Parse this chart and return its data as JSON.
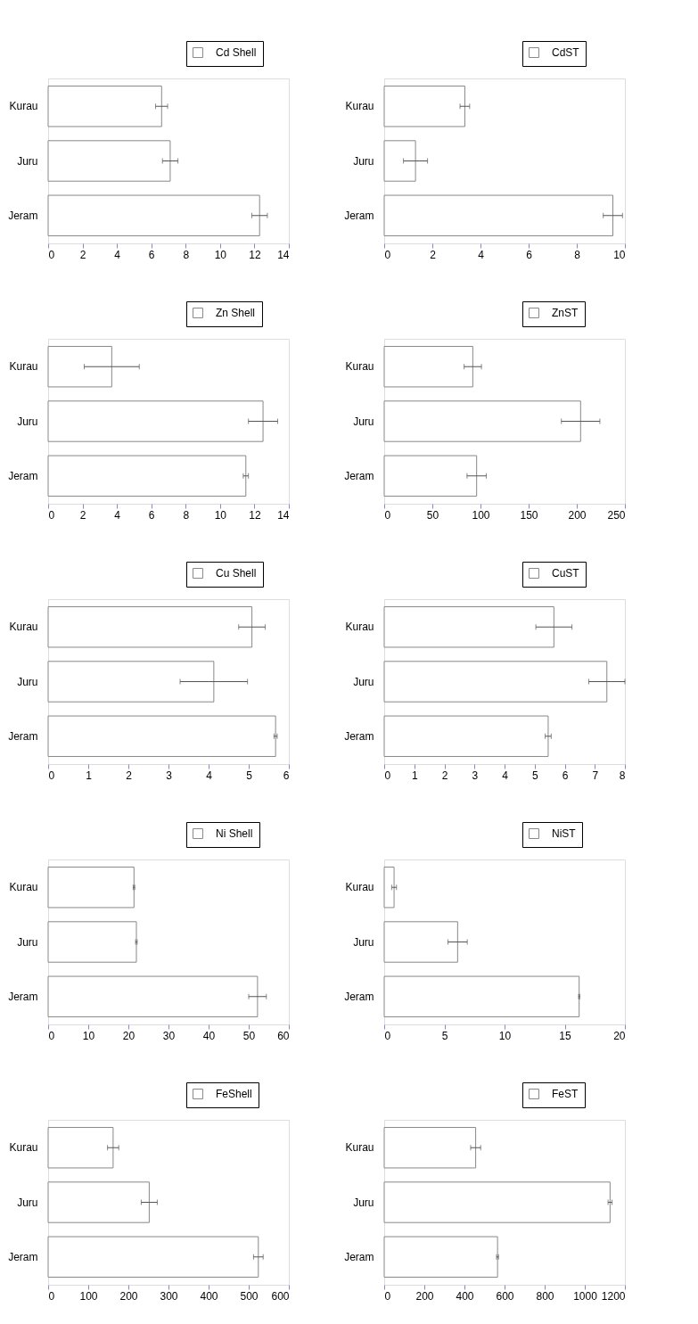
{
  "chart_data": [
    {
      "type": "bar",
      "orientation": "horizontal",
      "categories": [
        "Kurau",
        "Juru",
        "Jeram"
      ],
      "series": [
        {
          "name": "Cd Shell",
          "color": "#ffffff",
          "values": [
            6.6,
            7.1,
            12.3
          ],
          "errors": [
            0.35,
            0.45,
            0.45
          ]
        }
      ],
      "xlim": [
        0,
        14
      ],
      "xticks": [
        0,
        2,
        4,
        6,
        8,
        10,
        12,
        14
      ],
      "grid": false,
      "legend": "top right"
    },
    {
      "type": "bar",
      "orientation": "horizontal",
      "categories": [
        "Kurau",
        "Juru",
        "Jeram"
      ],
      "series": [
        {
          "name": "CdST",
          "color": "#ffffff",
          "values": [
            3.35,
            1.3,
            9.5
          ],
          "errors": [
            0.2,
            0.5,
            0.4
          ]
        }
      ],
      "xlim": [
        0,
        10
      ],
      "xticks": [
        0,
        2,
        4,
        6,
        8,
        10
      ],
      "grid": false,
      "legend": "top right"
    },
    {
      "type": "bar",
      "orientation": "horizontal",
      "categories": [
        "Kurau",
        "Juru",
        "Jeram"
      ],
      "series": [
        {
          "name": "Zn Shell",
          "color": "#ffffff",
          "values": [
            3.7,
            12.5,
            11.5
          ],
          "errors": [
            1.6,
            0.85,
            0.15
          ]
        }
      ],
      "xlim": [
        0,
        14
      ],
      "xticks": [
        0,
        2,
        4,
        6,
        8,
        10,
        12,
        14
      ],
      "grid": false,
      "legend": "top right"
    },
    {
      "type": "bar",
      "orientation": "horizontal",
      "categories": [
        "Kurau",
        "Juru",
        "Jeram"
      ],
      "series": [
        {
          "name": "ZnST",
          "color": "#ffffff",
          "values": [
            92,
            204,
            96
          ],
          "errors": [
            9,
            20,
            10
          ]
        }
      ],
      "xlim": [
        0,
        250
      ],
      "xticks": [
        0,
        50,
        100,
        150,
        200,
        250
      ],
      "grid": false,
      "legend": "top right"
    },
    {
      "type": "bar",
      "orientation": "horizontal",
      "categories": [
        "Kurau",
        "Juru",
        "Jeram"
      ],
      "series": [
        {
          "name": "Cu Shell",
          "color": "#ffffff",
          "values": [
            5.08,
            4.13,
            5.67
          ],
          "errors": [
            0.33,
            0.84,
            0.04
          ]
        }
      ],
      "xlim": [
        0,
        6
      ],
      "xticks": [
        0,
        1,
        2,
        3,
        4,
        5,
        6
      ],
      "grid": false,
      "legend": "top right"
    },
    {
      "type": "bar",
      "orientation": "horizontal",
      "categories": [
        "Kurau",
        "Juru",
        "Jeram"
      ],
      "series": [
        {
          "name": "CuST",
          "color": "#ffffff",
          "values": [
            5.64,
            7.4,
            5.45
          ],
          "errors": [
            0.6,
            0.6,
            0.1
          ]
        }
      ],
      "xlim": [
        0,
        8
      ],
      "xticks": [
        0,
        1,
        2,
        3,
        4,
        5,
        6,
        7,
        8
      ],
      "grid": false,
      "legend": "top right"
    },
    {
      "type": "bar",
      "orientation": "horizontal",
      "categories": [
        "Kurau",
        "Juru",
        "Jeram"
      ],
      "series": [
        {
          "name": "Ni Shell",
          "color": "#ffffff",
          "values": [
            21.4,
            22.0,
            52.2
          ],
          "errors": [
            0.2,
            0.2,
            2.2
          ]
        }
      ],
      "xlim": [
        0,
        60
      ],
      "xticks": [
        0,
        10,
        20,
        30,
        40,
        50,
        60
      ],
      "grid": false,
      "legend": "top right"
    },
    {
      "type": "bar",
      "orientation": "horizontal",
      "categories": [
        "Kurau",
        "Juru",
        "Jeram"
      ],
      "series": [
        {
          "name": "NiST",
          "color": "#ffffff",
          "values": [
            0.82,
            6.1,
            16.2
          ],
          "errors": [
            0.2,
            0.8,
            0.05
          ]
        }
      ],
      "xlim": [
        0,
        20
      ],
      "xticks": [
        0,
        5,
        10,
        15,
        20
      ],
      "grid": false,
      "legend": "top right"
    },
    {
      "type": "bar",
      "orientation": "horizontal",
      "categories": [
        "Kurau",
        "Juru",
        "Jeram"
      ],
      "series": [
        {
          "name": "FeShell",
          "color": "#ffffff",
          "values": [
            162,
            252,
            524
          ],
          "errors": [
            14,
            20,
            12
          ]
        }
      ],
      "xlim": [
        0,
        600
      ],
      "xticks": [
        0,
        100,
        200,
        300,
        400,
        500,
        600
      ],
      "grid": false,
      "legend": "top right"
    },
    {
      "type": "bar",
      "orientation": "horizontal",
      "categories": [
        "Kurau",
        "Juru",
        "Jeram"
      ],
      "series": [
        {
          "name": "FeST",
          "color": "#ffffff",
          "values": [
            456,
            1126,
            565
          ],
          "errors": [
            25,
            10,
            5
          ]
        }
      ],
      "xlim": [
        0,
        1200
      ],
      "xticks": [
        0,
        200,
        400,
        600,
        800,
        1000,
        1200
      ],
      "grid": false,
      "legend": "top right"
    }
  ]
}
